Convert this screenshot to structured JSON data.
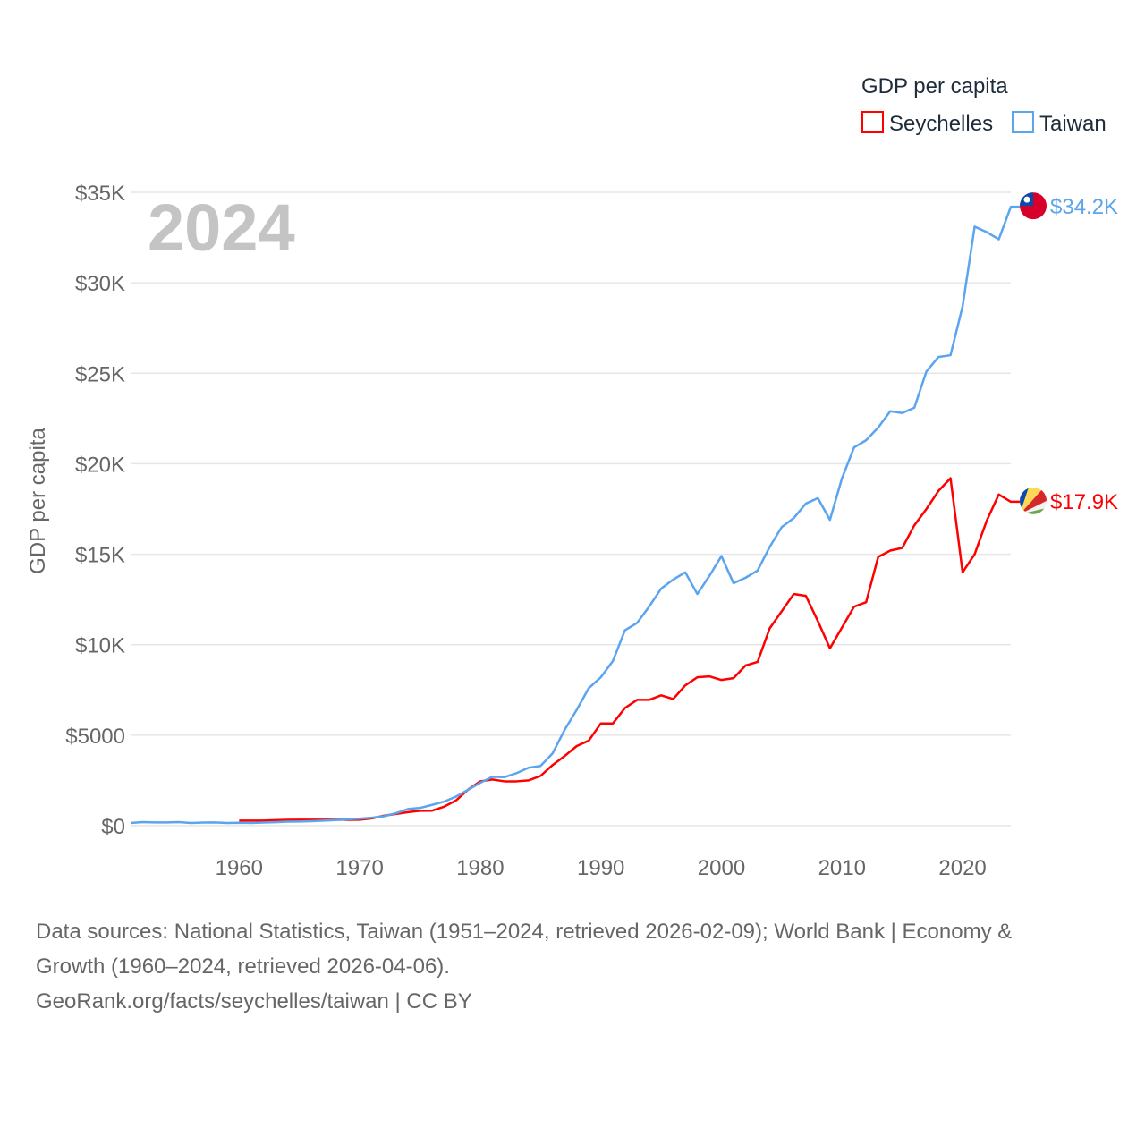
{
  "chart_data": {
    "type": "line",
    "title": "",
    "year_label": "2024",
    "ylabel": "GDP per capita",
    "xlabel": "",
    "legend": {
      "title": "GDP per capita",
      "placement": "top-right"
    },
    "xlim": [
      1951,
      2024
    ],
    "ylim": [
      0,
      35000
    ],
    "x_ticks": [
      1960,
      1970,
      1980,
      1990,
      2000,
      2010,
      2020
    ],
    "x_tick_labels": [
      "1960",
      "1970",
      "1980",
      "1990",
      "2000",
      "2010",
      "2020"
    ],
    "y_ticks": [
      0,
      5000,
      10000,
      15000,
      20000,
      25000,
      30000,
      35000
    ],
    "y_tick_labels": [
      "$0",
      "$5000",
      "$10K",
      "$15K",
      "$20K",
      "$25K",
      "$30K",
      "$35K"
    ],
    "grid": true,
    "series": [
      {
        "name": "Seychelles",
        "color": "#ff0000",
        "flag": "seychelles-flag",
        "end_label": "$17.9K",
        "start_year": 1960,
        "values_thousands": [
          0.28,
          0.28,
          0.28,
          0.3,
          0.32,
          0.33,
          0.33,
          0.33,
          0.33,
          0.32,
          0.33,
          0.4,
          0.55,
          0.65,
          0.75,
          0.82,
          0.83,
          1.05,
          1.4,
          2.0,
          2.45,
          2.55,
          2.45,
          2.45,
          2.5,
          2.75,
          3.35,
          3.85,
          4.4,
          4.7,
          5.65,
          5.65,
          6.5,
          6.95,
          6.95,
          7.2,
          7.0,
          7.75,
          8.2,
          8.25,
          8.05,
          8.15,
          8.85,
          9.05,
          10.9,
          11.85,
          12.8,
          12.7,
          11.3,
          9.8,
          10.95,
          12.1,
          12.35,
          14.85,
          15.2,
          15.35,
          16.6,
          17.5,
          18.5,
          19.2,
          14.0,
          15.0,
          16.85,
          18.3,
          17.9
        ]
      },
      {
        "name": "Taiwan",
        "color": "#5ba4ee",
        "flag": "taiwan-flag",
        "end_label": "$34.2K",
        "start_year": 1951,
        "values_thousands": [
          0.15,
          0.2,
          0.18,
          0.18,
          0.2,
          0.15,
          0.17,
          0.18,
          0.15,
          0.16,
          0.15,
          0.17,
          0.19,
          0.22,
          0.23,
          0.25,
          0.28,
          0.31,
          0.35,
          0.39,
          0.44,
          0.52,
          0.69,
          0.92,
          0.98,
          1.15,
          1.33,
          1.61,
          1.99,
          2.37,
          2.7,
          2.68,
          2.9,
          3.2,
          3.3,
          4.0,
          5.3,
          6.4,
          7.6,
          8.2,
          9.1,
          10.8,
          11.2,
          12.1,
          13.1,
          13.6,
          14.0,
          12.8,
          13.8,
          14.9,
          13.4,
          13.7,
          14.1,
          15.4,
          16.5,
          17.0,
          17.8,
          18.1,
          16.9,
          19.2,
          20.9,
          21.3,
          22.0,
          22.9,
          22.8,
          23.1,
          25.1,
          25.9,
          26.0,
          28.7,
          33.1,
          32.8,
          32.4,
          34.2
        ]
      }
    ]
  },
  "footer": {
    "line1": "Data sources: National Statistics, Taiwan (1951–2024, retrieved 2026-02-09); World Bank | Economy &",
    "line2": "Growth (1960–2024, retrieved 2026-04-06).",
    "line3": "GeoRank.org/facts/seychelles/taiwan | CC BY"
  }
}
